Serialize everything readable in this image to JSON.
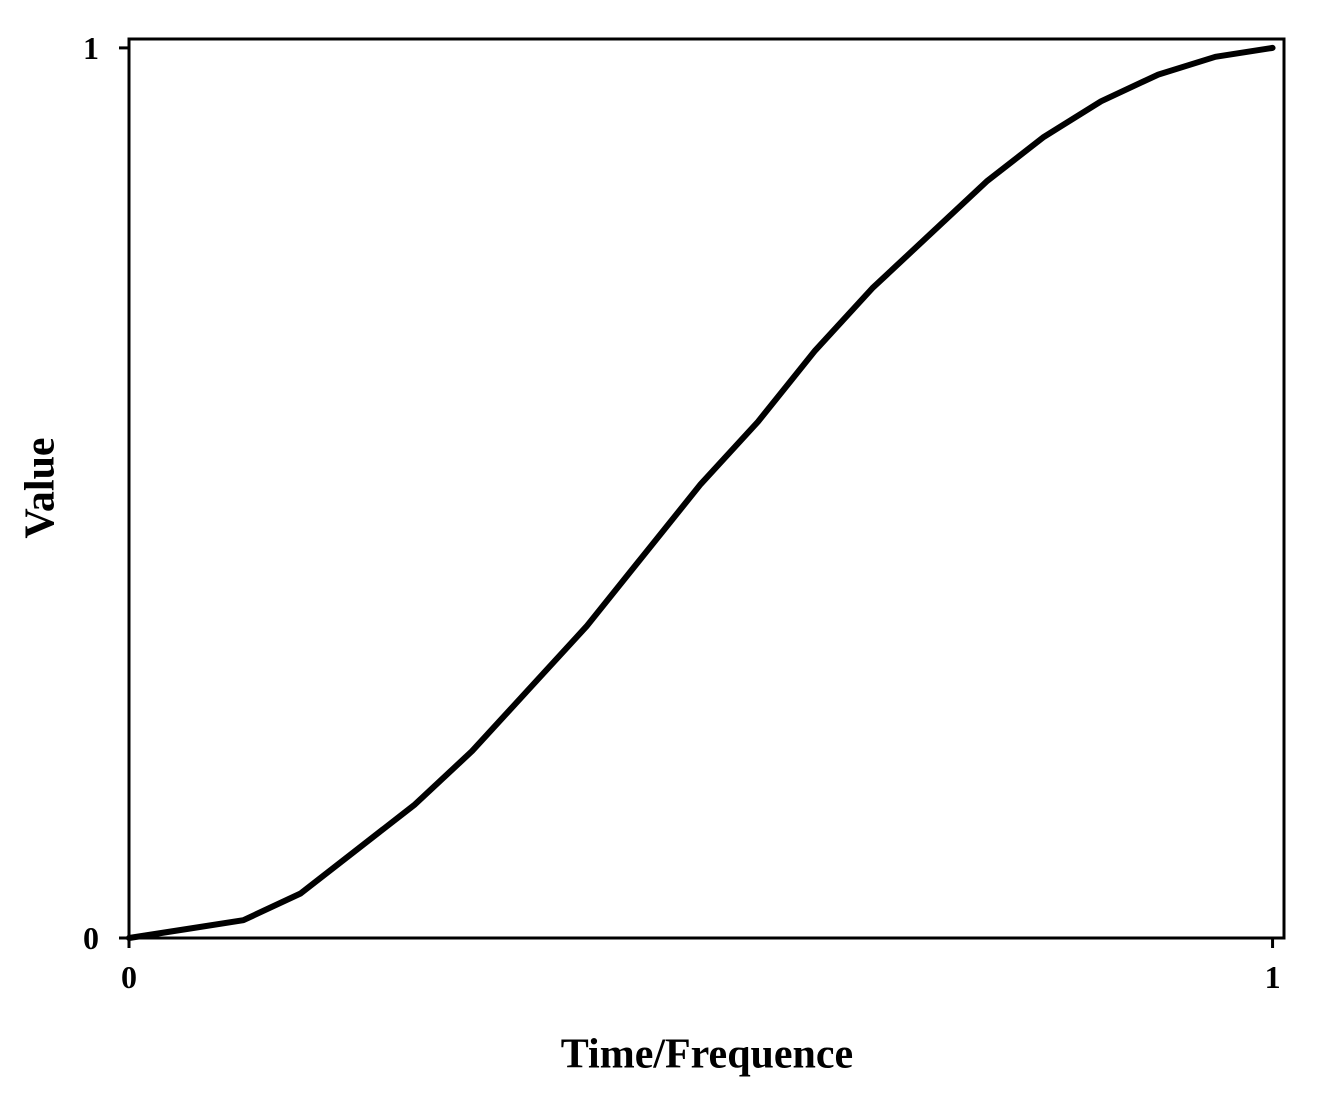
{
  "chart_data": {
    "type": "line",
    "xlabel": "Time/Frequence",
    "ylabel": "Value",
    "x": [
      0,
      0.05,
      0.1,
      0.15,
      0.2,
      0.25,
      0.3,
      0.35,
      0.4,
      0.45,
      0.5,
      0.55,
      0.6,
      0.65,
      0.7,
      0.75,
      0.8,
      0.85,
      0.9,
      0.95,
      1
    ],
    "values": [
      0,
      0.01,
      0.02,
      0.05,
      0.1,
      0.15,
      0.21,
      0.28,
      0.35,
      0.43,
      0.51,
      0.58,
      0.66,
      0.73,
      0.79,
      0.85,
      0.9,
      0.94,
      0.97,
      0.99,
      1
    ],
    "color": "#000000",
    "xlim": [
      0,
      1.01
    ],
    "ylim": [
      0,
      1.01
    ],
    "xticks": [
      0,
      1
    ],
    "yticks": [
      0,
      1
    ]
  }
}
